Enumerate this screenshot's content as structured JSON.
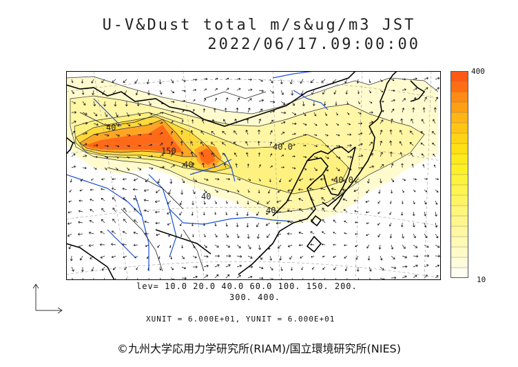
{
  "title": {
    "line1": "U-V&Dust total m/s&ug/m3 JST",
    "line2": "2022/06/17.09:00:00"
  },
  "levels": {
    "line1": "lev= 10.0 20.0 40.0 60.0 100. 150. 200.",
    "line2": "300. 400."
  },
  "units_text": "XUNIT = 6.000E+01, YUNIT = 6.000E+01",
  "credit": "©九州大学応用力学研究所(RIAM)/国立環境研究所(NIES)",
  "colorbar": {
    "max_label": "400",
    "min_label": "10",
    "colors": [
      "#ff5a14",
      "#ff6e14",
      "#ff8a14",
      "#ff9f14",
      "#ffb514",
      "#ffc514",
      "#ffd414",
      "#ffe014",
      "#ffea1e",
      "#fff028",
      "#fff23c",
      "#fff450",
      "#fff564",
      "#fff67a",
      "#fff78c",
      "#fff8a0",
      "#fffab4",
      "#fffbc8",
      "#fffcdc",
      "#fffef0"
    ]
  },
  "contour_labels": [
    "40",
    "150",
    "40",
    "40.0",
    "40.0",
    "40",
    "40"
  ],
  "colors": {
    "land_line": "#000000",
    "river": "#1a4fd6",
    "grid": "#9a9a9a"
  }
}
